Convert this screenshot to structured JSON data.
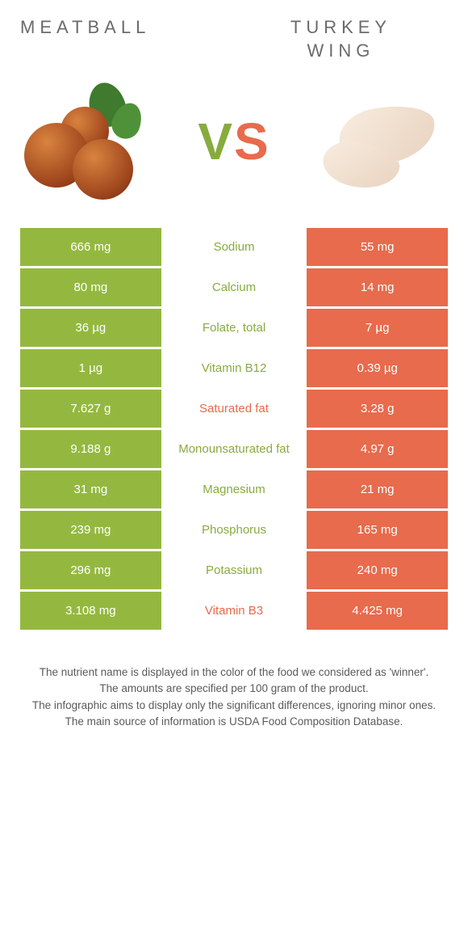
{
  "colors": {
    "left": "#94b83f",
    "right": "#e76b4c",
    "nutrient_green": "#88ab3e",
    "nutrient_orange": "#e76b4c",
    "title_text": "#6b6b6b"
  },
  "header": {
    "left_title": "Meatball",
    "right_title": "Turkey\nwing",
    "vs_text": "VS"
  },
  "table": {
    "type": "comparison-table",
    "rows": [
      {
        "left": "666 mg",
        "nutrient": "Sodium",
        "right": "55 mg",
        "winner": "left"
      },
      {
        "left": "80 mg",
        "nutrient": "Calcium",
        "right": "14 mg",
        "winner": "left"
      },
      {
        "left": "36 µg",
        "nutrient": "Folate, total",
        "right": "7 µg",
        "winner": "left"
      },
      {
        "left": "1 µg",
        "nutrient": "Vitamin B12",
        "right": "0.39 µg",
        "winner": "left"
      },
      {
        "left": "7.627 g",
        "nutrient": "Saturated fat",
        "right": "3.28 g",
        "winner": "right"
      },
      {
        "left": "9.188 g",
        "nutrient": "Monounsaturated fat",
        "right": "4.97 g",
        "winner": "left"
      },
      {
        "left": "31 mg",
        "nutrient": "Magnesium",
        "right": "21 mg",
        "winner": "left"
      },
      {
        "left": "239 mg",
        "nutrient": "Phosphorus",
        "right": "165 mg",
        "winner": "left"
      },
      {
        "left": "296 mg",
        "nutrient": "Potassium",
        "right": "240 mg",
        "winner": "left"
      },
      {
        "left": "3.108 mg",
        "nutrient": "Vitamin B3",
        "right": "4.425 mg",
        "winner": "right"
      }
    ]
  },
  "footnotes": [
    "The nutrient name is displayed in the color of the food we considered as 'winner'.",
    "The amounts are specified per 100 gram of the product.",
    "The infographic aims to display only the significant differences, ignoring minor ones.",
    "The main source of information is USDA Food Composition Database."
  ]
}
